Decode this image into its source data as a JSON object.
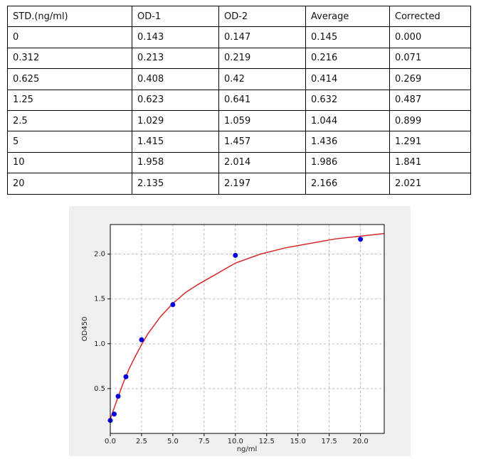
{
  "table": {
    "header": [
      "STD.(ng/ml)",
      "OD-1",
      "OD-2",
      "Average",
      "Corrected"
    ],
    "rows": [
      [
        "0",
        "0.143",
        "0.147",
        "0.145",
        "0.000"
      ],
      [
        "0.312",
        "0.213",
        "0.219",
        "0.216",
        "0.071"
      ],
      [
        "0.625",
        "0.408",
        "0.42",
        "0.414",
        "0.269"
      ],
      [
        "1.25",
        "0.623",
        "0.641",
        "0.632",
        "0.487"
      ],
      [
        "2.5",
        "1.029",
        "1.059",
        "1.044",
        "0.899"
      ],
      [
        "5",
        "1.415",
        "1.457",
        "1.436",
        "1.291"
      ],
      [
        "10",
        "1.958",
        "2.014",
        "1.986",
        "1.841"
      ],
      [
        "20",
        "2.135",
        "2.197",
        "2.166",
        "2.021"
      ]
    ]
  },
  "chart_data": {
    "type": "scatter",
    "x_label": "ng/ml",
    "y_label": "OD450",
    "xlim": [
      0,
      21.9
    ],
    "ylim": [
      0,
      2.33
    ],
    "xticks": [
      {
        "value": 0,
        "label": "0.0"
      },
      2.5,
      {
        "value": 5,
        "label": "5.0"
      },
      7.5,
      {
        "value": 10,
        "label": "10.0"
      },
      12.5,
      {
        "value": 15,
        "label": "15.0"
      },
      17.5,
      {
        "value": 20,
        "label": "20.0"
      }
    ],
    "yticks": [
      0.5,
      {
        "value": 1,
        "label": "1.0"
      },
      1.5,
      {
        "value": 2,
        "label": "2.0"
      }
    ],
    "grid": true,
    "series": [
      {
        "type": "scatter",
        "color": "#0000dd",
        "x": [
          0,
          0.312,
          0.625,
          1.25,
          2.5,
          5,
          10,
          20
        ],
        "values": [
          0.145,
          0.216,
          0.414,
          0.632,
          1.044,
          1.436,
          1.986,
          2.166
        ]
      },
      {
        "type": "line",
        "color": "#d62728",
        "x": [
          0,
          0.5,
          1,
          1.5,
          2,
          2.5,
          3,
          4,
          5,
          6,
          7,
          8,
          10,
          12,
          14,
          16,
          18,
          20,
          21.9
        ],
        "values": [
          0.16,
          0.36,
          0.55,
          0.72,
          0.86,
          0.99,
          1.11,
          1.3,
          1.45,
          1.57,
          1.66,
          1.74,
          1.9,
          2.0,
          2.07,
          2.12,
          2.17,
          2.2,
          2.23
        ]
      }
    ]
  }
}
